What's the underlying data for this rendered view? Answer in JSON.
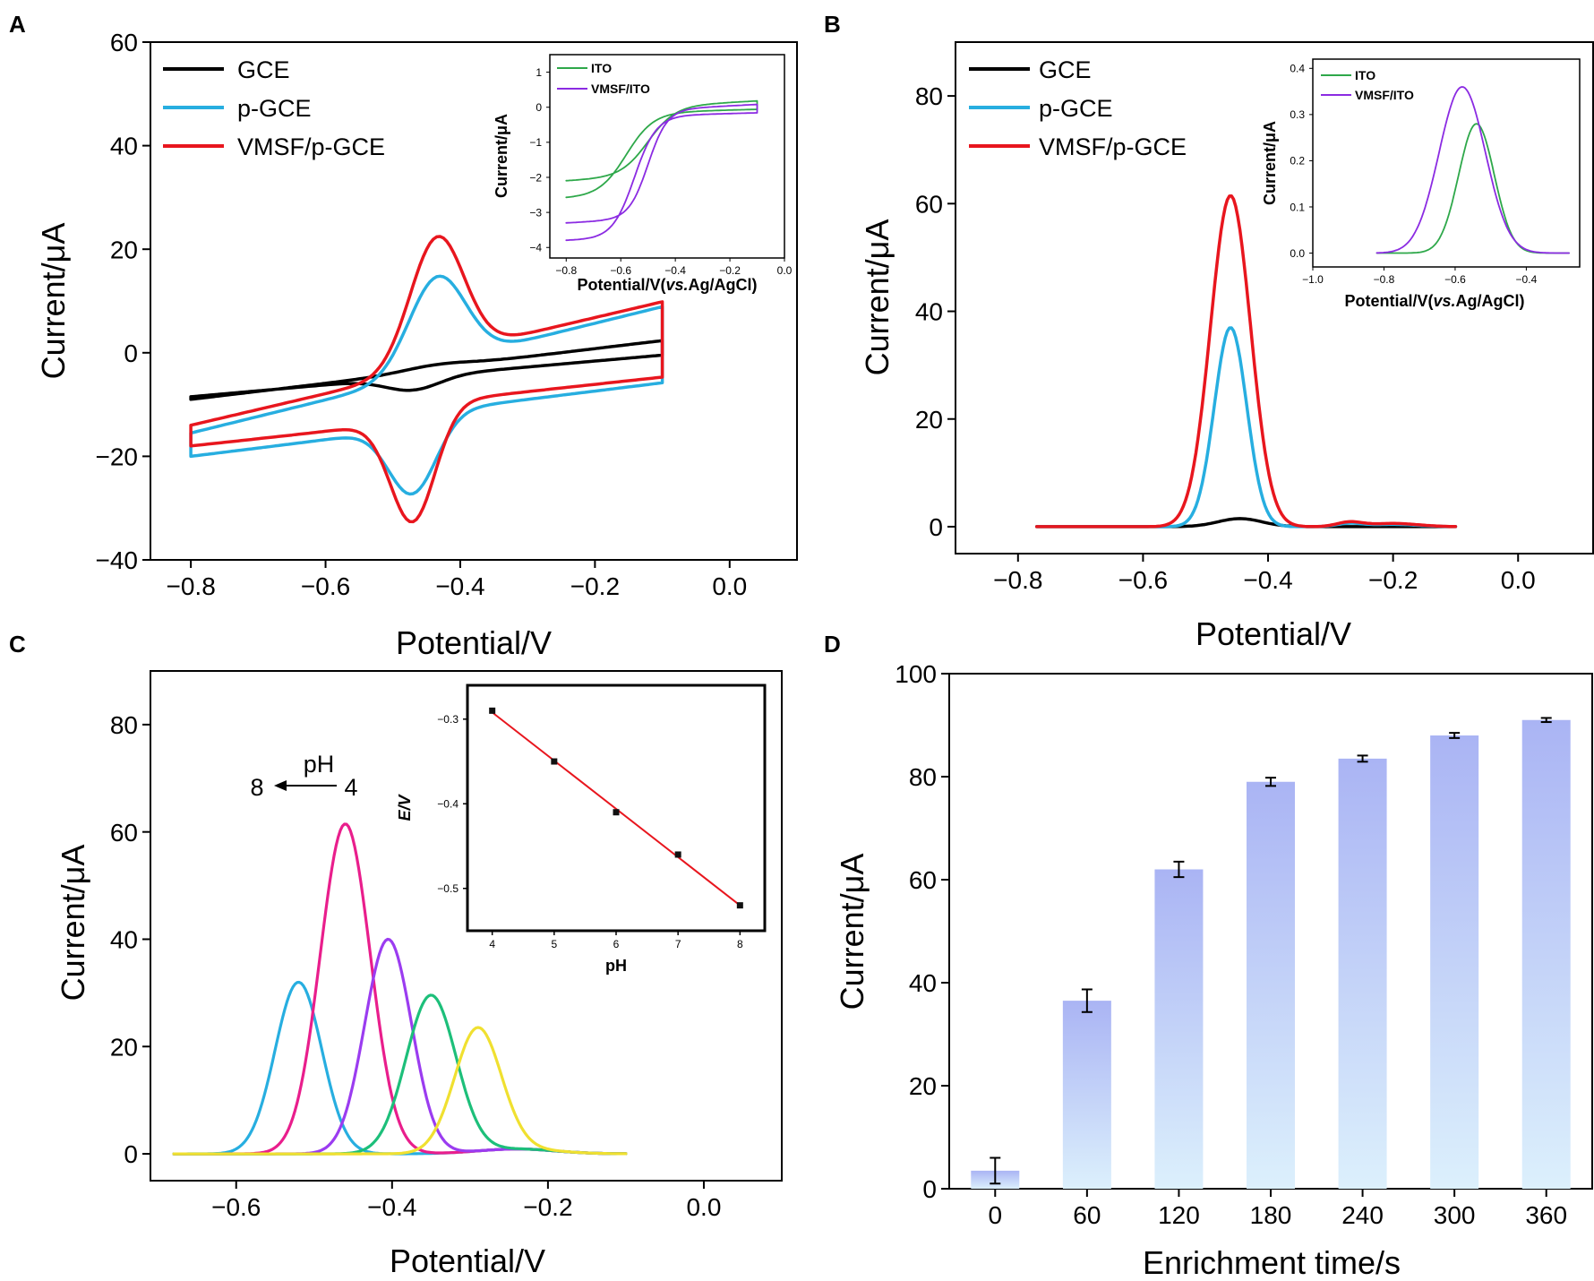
{
  "panels": {
    "A": {
      "label": "A",
      "type": "line",
      "xlabel": "Potential/V",
      "ylabel": "Current/μA",
      "xlim": [
        -0.86,
        0.1
      ],
      "ylim": [
        -40,
        60
      ],
      "xticks": [
        -0.8,
        -0.6,
        -0.4,
        -0.2,
        0.0
      ],
      "xtick_labels": [
        "−0.8",
        "−0.6",
        "−0.4",
        "−0.2",
        "0.0"
      ],
      "yticks": [
        -40,
        -20,
        0,
        20,
        40,
        60
      ],
      "ytick_labels": [
        "−40",
        "−20",
        "0",
        "20",
        "40",
        "60"
      ],
      "legend": [
        "GCE",
        "p-GCE",
        "VMSF/p-GCE"
      ],
      "colors": [
        "#000000",
        "#27aee0",
        "#e8161e"
      ],
      "inset": {
        "type": "line",
        "xlabel_parts": [
          "Potential/V(",
          "vs.",
          "Ag/AgCl)"
        ],
        "ylabel": "Current/μA",
        "xlim": [
          -0.86,
          0.0
        ],
        "ylim": [
          -4.3,
          1.5
        ],
        "xticks": [
          -0.8,
          -0.6,
          -0.4,
          -0.2,
          0.0
        ],
        "xtick_labels": [
          "−0.8",
          "−0.6",
          "−0.4",
          "−0.2",
          "0.0"
        ],
        "yticks": [
          -4,
          -3,
          -2,
          -1,
          0,
          1
        ],
        "ytick_labels": [
          "−4",
          "−3",
          "−2",
          "−1",
          "0",
          "1"
        ],
        "legend": [
          "ITO",
          "VMSF/ITO"
        ],
        "colors": [
          "#2ea84a",
          "#8b2be2"
        ]
      }
    },
    "B": {
      "label": "B",
      "type": "line",
      "xlabel": "Potential/V",
      "ylabel": "Current/μA",
      "xlim": [
        -0.9,
        0.12
      ],
      "ylim": [
        -5,
        90
      ],
      "xticks": [
        -0.8,
        -0.6,
        -0.4,
        -0.2,
        0.0
      ],
      "xtick_labels": [
        "−0.8",
        "−0.6",
        "−0.4",
        "−0.2",
        "0.0"
      ],
      "yticks": [
        0,
        20,
        40,
        60,
        80
      ],
      "ytick_labels": [
        "0",
        "20",
        "40",
        "60",
        "80"
      ],
      "legend": [
        "GCE",
        "p-GCE",
        "VMSF/p-GCE"
      ],
      "colors": [
        "#000000",
        "#27aee0",
        "#e8161e"
      ],
      "series_peaks": [
        {
          "name": "GCE",
          "peak_potential": -0.445,
          "peak_current": 1.5
        },
        {
          "name": "p-GCE",
          "peak_potential": -0.46,
          "peak_current": 37
        },
        {
          "name": "VMSF/p-GCE",
          "peak_potential": -0.46,
          "peak_current": 61.5
        }
      ],
      "inset": {
        "type": "line",
        "xlabel_parts": [
          "Potential/V(",
          "vs.",
          "Ag/AgCl)"
        ],
        "ylabel": "Current/μA",
        "xlim": [
          -1.0,
          -0.25
        ],
        "ylim": [
          -0.03,
          0.42
        ],
        "xticks": [
          -1.0,
          -0.8,
          -0.6,
          -0.4
        ],
        "xtick_labels": [
          "−1.0",
          "−0.8",
          "−0.6",
          "−0.4"
        ],
        "yticks": [
          0.0,
          0.1,
          0.2,
          0.3,
          0.4
        ],
        "ytick_labels": [
          "0.0",
          "0.1",
          "0.2",
          "0.3",
          "0.4"
        ],
        "legend": [
          "ITO",
          "VMSF/ITO"
        ],
        "colors": [
          "#2ea84a",
          "#8b2be2"
        ],
        "series_peaks": [
          {
            "name": "ITO",
            "peak_potential": -0.54,
            "peak_current": 0.28
          },
          {
            "name": "VMSF/ITO",
            "peak_potential": -0.58,
            "peak_current": 0.36
          }
        ]
      }
    },
    "C": {
      "label": "C",
      "type": "line",
      "xlabel": "Potential/V",
      "ylabel": "Current/μA",
      "xlim": [
        -0.71,
        0.1
      ],
      "ylim": [
        -5,
        90
      ],
      "xticks": [
        -0.6,
        -0.4,
        -0.2,
        0.0
      ],
      "xtick_labels": [
        "−0.6",
        "−0.4",
        "−0.2",
        "0.0"
      ],
      "yticks": [
        0,
        20,
        40,
        60,
        80
      ],
      "ytick_labels": [
        "0",
        "20",
        "40",
        "60",
        "80"
      ],
      "annotation": {
        "ph_label": "pH",
        "left": "8",
        "right": "4"
      },
      "series": [
        {
          "name": "pH 8",
          "color": "#27aee0",
          "peak_potential": -0.52,
          "peak_current": 32
        },
        {
          "name": "pH 7",
          "color": "#e91e8c",
          "peak_potential": -0.46,
          "peak_current": 61.5
        },
        {
          "name": "pH 6",
          "color": "#9b3cf0",
          "peak_potential": -0.405,
          "peak_current": 40
        },
        {
          "name": "pH 5",
          "color": "#1dbf7a",
          "peak_potential": -0.35,
          "peak_current": 29.5
        },
        {
          "name": "pH 4",
          "color": "#f0e030",
          "peak_potential": -0.29,
          "peak_current": 23
        }
      ],
      "inset": {
        "type": "scatter",
        "xlabel": "pH",
        "ylabel": "E/V",
        "xlim": [
          3.6,
          8.4
        ],
        "ylim": [
          -0.55,
          -0.26
        ],
        "xticks": [
          4,
          5,
          6,
          7,
          8
        ],
        "xtick_labels": [
          "4",
          "5",
          "6",
          "7",
          "8"
        ],
        "yticks": [
          -0.5,
          -0.4,
          -0.3
        ],
        "ytick_labels": [
          "−0.5",
          "−0.4",
          "−0.3"
        ],
        "x": [
          4,
          5,
          6,
          7,
          8
        ],
        "y": [
          -0.29,
          -0.35,
          -0.41,
          -0.46,
          -0.52
        ],
        "fit_color": "#e8161e"
      }
    },
    "D": {
      "label": "D",
      "type": "bar",
      "xlabel": "Enrichment time/s",
      "ylabel": "Current/μA",
      "ylim": [
        0,
        100
      ],
      "yticks": [
        0,
        20,
        40,
        60,
        80,
        100
      ],
      "ytick_labels": [
        "0",
        "20",
        "40",
        "60",
        "80",
        "100"
      ],
      "categories": [
        "0",
        "60",
        "120",
        "180",
        "240",
        "300",
        "360"
      ],
      "values": [
        3.5,
        36.5,
        62,
        79,
        83.5,
        88,
        91
      ],
      "errors": [
        2.5,
        2.2,
        1.5,
        0.8,
        0.6,
        0.5,
        0.4
      ]
    }
  }
}
